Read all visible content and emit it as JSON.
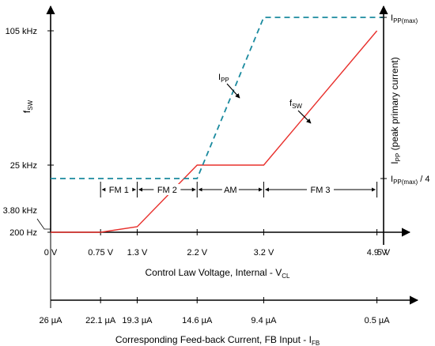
{
  "chart_data": {
    "type": "line",
    "title": "",
    "colors": {
      "fsw": "#e8302c",
      "ipp": "#1a8a9f",
      "axes": "#000000"
    },
    "x_axis_primary": {
      "label": "Control Law Voltage, Internal - V",
      "label_sub": "CL",
      "xlim": [
        0,
        5
      ],
      "ticks": [
        {
          "v": 0,
          "label": "0 V"
        },
        {
          "v": 0.75,
          "label": "0.75 V"
        },
        {
          "v": 1.3,
          "label": "1.3 V"
        },
        {
          "v": 2.2,
          "label": "2.2 V"
        },
        {
          "v": 3.2,
          "label": "3.2 V"
        },
        {
          "v": 4.9,
          "label": "4.9 V"
        },
        {
          "v": 5,
          "label": "5 V"
        }
      ]
    },
    "x_axis_secondary": {
      "label": "Corresponding Feed-back Current, FB Input - I",
      "label_sub": "FB",
      "ticks": [
        {
          "v": 0,
          "label": "26 µA"
        },
        {
          "v": 0.75,
          "label": "22.1 µA"
        },
        {
          "v": 1.3,
          "label": "19.3 µA"
        },
        {
          "v": 2.2,
          "label": "14.6 µA"
        },
        {
          "v": 3.2,
          "label": "9.4 µA"
        },
        {
          "v": 4.9,
          "label": "0.5 µA"
        }
      ]
    },
    "y_axis_left": {
      "label": "f",
      "label_sub": "SW",
      "ticks": [
        {
          "v": 200,
          "label": "200 Hz"
        },
        {
          "v": 3800,
          "label": "3.80 kHz"
        },
        {
          "v": 25000,
          "label": "25 kHz"
        },
        {
          "v": 105000,
          "label": "105 kHz"
        }
      ]
    },
    "y_axis_right": {
      "label": "I",
      "label_sub": "PP",
      "label_rest": " (peak primary current)",
      "ticks": [
        {
          "name": "ipp_max",
          "main": "I",
          "sub": "PP(max)",
          "rest": ""
        },
        {
          "name": "ipp_quarter",
          "main": "I",
          "sub": "PP(max)",
          "rest": " / 4"
        }
      ]
    },
    "series": [
      {
        "name": "fSW",
        "label_main": "f",
        "label_sub": "SW",
        "style": "solid",
        "points": [
          [
            0,
            200
          ],
          [
            0.75,
            200
          ],
          [
            1.3,
            3800
          ],
          [
            2.2,
            25000
          ],
          [
            3.2,
            25000
          ],
          [
            4.9,
            105000
          ]
        ]
      },
      {
        "name": "IPP",
        "label_main": "I",
        "label_sub": "PP",
        "style": "dashed",
        "points": [
          [
            0,
            0.25
          ],
          [
            2.2,
            0.25
          ],
          [
            3.2,
            1.0
          ],
          [
            5,
            1.0
          ]
        ]
      }
    ],
    "modes": [
      {
        "label": "FM 1",
        "from": 0.75,
        "to": 1.3
      },
      {
        "label": "FM 2",
        "from": 1.3,
        "to": 2.2
      },
      {
        "label": "AM",
        "from": 2.2,
        "to": 3.2
      },
      {
        "label": "FM 3",
        "from": 3.2,
        "to": 4.9
      }
    ]
  }
}
